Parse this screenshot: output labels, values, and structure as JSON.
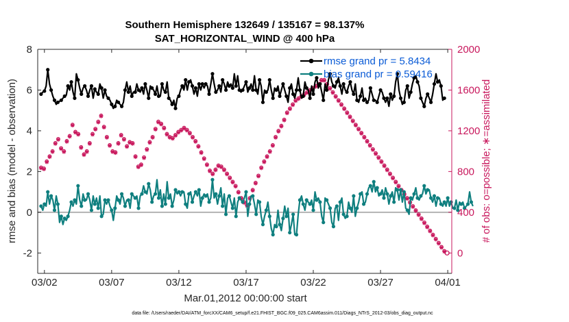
{
  "chart_data": {
    "type": "line",
    "title": "Southern Hemisphere 132649 / 135167 = 98.137%",
    "subtitle": "SAT_HORIZONTAL_WIND @ 400 hPa",
    "xlabel": "Mar.01,2012 00:00:00 start",
    "ylabel_left": "rmse and bias (model - observation)",
    "ylabel_right": "# of obs: o=possible; ∗=assimilated",
    "footnote": "data file: /Users/raeder/DAI/ATM_forcXX/CAM6_setup/f.e21.FHIST_BGC.f09_025.CAM6assim.011/Diags_NTrS_2012-03/obs_diag_output.nc",
    "x_tick_labels": [
      "03/02",
      "03/07",
      "03/12",
      "03/17",
      "03/22",
      "03/27",
      "04/01"
    ],
    "x_tick_days": [
      2,
      7,
      12,
      17,
      22,
      27,
      32
    ],
    "xlim_days": [
      1.5,
      32.3
    ],
    "y_left_ticks": [
      "8",
      "6",
      "4",
      "2",
      "0",
      "-2"
    ],
    "y_left_lim": [
      -3,
      8
    ],
    "y_right_ticks": [
      "2000",
      "1600",
      "1200",
      "800",
      "400",
      "0"
    ],
    "y_right_lim": [
      -200,
      2000
    ],
    "legend": {
      "location": "top-right",
      "entries": [
        "rmse grand pr = 5.8434",
        "bias grand pr = 0.59416"
      ]
    },
    "colors": {
      "rmse": "#000000",
      "bias": "#0f7f7f",
      "obs": "#c8175c",
      "zero_line": "#b3b3b3"
    },
    "series": [
      {
        "name": "rmse grand pr = 5.8434",
        "values": [
          5.8,
          5.9,
          5.95,
          6.2,
          7.0,
          6.3,
          6.0,
          5.7,
          5.5,
          5.3,
          5.4,
          5.45,
          5.5,
          5.6,
          5.7,
          5.75,
          6.2,
          6.0,
          6.4,
          5.9,
          5.6,
          6.8,
          6.5,
          6.1,
          5.8,
          6.1,
          6.2,
          6.0,
          5.7,
          6.0,
          6.2,
          5.6,
          6.05,
          5.9,
          5.8,
          6.3,
          6.1,
          5.6,
          6.0,
          5.7,
          5.6,
          5.5,
          5.3,
          5.1,
          5.2,
          5.5,
          5.4,
          5.3,
          5.2,
          5.4,
          6.0,
          6.4,
          5.9,
          6.2,
          5.7,
          5.9,
          5.9,
          6.3,
          6.0,
          5.9,
          6.1,
          5.8,
          6.3,
          6.0,
          5.6,
          6.2,
          6.1,
          6.0,
          5.8,
          6.2,
          5.7,
          5.7,
          6.3,
          6.0,
          5.9,
          6.4,
          5.6,
          5.5,
          5.3,
          5.5,
          5.1,
          5.6,
          5.7,
          6.0,
          6.2,
          6.0,
          6.5,
          6.0,
          6.4,
          6.5,
          6.2,
          5.8,
          6.1,
          5.7,
          6.3,
          6.0,
          6.3,
          6.1,
          6.3,
          6.2,
          5.8,
          6.3,
          6.8,
          6.3,
          5.9,
          6.0,
          6.2,
          5.9,
          6.5,
          6.3,
          6.0,
          6.4,
          6.2,
          6.3,
          6.1,
          6.8,
          6.2,
          6.7,
          6.0,
          5.9,
          6.0,
          6.2,
          6.4,
          5.9,
          6.1,
          6.3,
          6.0,
          6.7,
          6.0,
          5.8,
          6.5,
          6.2,
          5.4,
          6.0,
          5.9,
          6.0,
          6.5,
          6.0,
          5.6,
          6.1,
          6.0,
          6.2,
          5.7,
          6.0,
          6.3,
          6.0,
          5.7,
          5.4,
          6.1,
          6.3,
          5.8,
          5.6,
          6.0,
          6.6,
          6.0,
          5.6,
          5.7,
          6.4,
          6.1,
          6.0,
          5.6,
          6.2,
          5.8,
          6.4,
          6.6,
          6.1,
          6.3,
          5.9,
          5.5,
          6.3,
          6.0,
          6.5,
          6.8,
          6.4,
          6.2,
          6.1,
          6.4,
          6.6,
          6.2,
          5.8,
          6.3,
          6.0,
          5.9,
          6.2,
          6.4,
          6.0,
          5.8,
          6.3,
          5.5,
          5.4,
          5.7,
          6.1,
          5.5,
          5.6,
          5.4,
          5.5,
          6.1,
          5.8,
          5.5,
          5.5,
          5.4,
          5.7,
          6.0,
          5.9,
          5.6,
          5.4,
          5.6,
          5.2,
          5.8,
          5.5,
          5.7,
          6.4,
          6.8,
          6.0,
          5.6,
          5.3,
          5.4,
          6.0,
          6.2,
          5.6,
          5.9,
          6.3,
          6.6,
          6.7,
          6.4,
          6.2,
          5.6,
          5.4,
          5.2,
          5.6,
          5.8,
          5.6,
          5.4,
          5.8,
          6.3,
          6.8,
          6.4,
          6.5,
          6.2,
          5.5,
          5.6
        ]
      },
      {
        "name": "bias grand pr = 0.59416",
        "values": [
          0.3,
          0.1,
          0.4,
          0.3,
          1.0,
          0.4,
          0.8,
          0.6,
          0.1,
          0.8,
          0.4,
          -0.5,
          -0.2,
          -0.6,
          -0.3,
          -0.4,
          -0.2,
          0.1,
          0.5,
          0.3,
          0.6,
          0.4,
          1.3,
          0.6,
          0.3,
          0.9,
          0.6,
          0.6,
          0.9,
          0.6,
          0.1,
          0.8,
          0.4,
          0.7,
          0.2,
          0.8,
          -0.2,
          -0.1,
          0.6,
          0.4,
          0.6,
          0.3,
          0.1,
          -0.4,
          0.2,
          0.8,
          0.6,
          0.4,
          0.9,
          0.7,
          0.3,
          0.6,
          0.6,
          0.2,
          0.9,
          0.8,
          0.7,
          0.8,
          0.2,
          0.8,
          0.9,
          1.3,
          1.0,
          0.9,
          1.4,
          1.1,
          0.5,
          0.8,
          0.9,
          1.6,
          0.7,
          1.1,
          0.3,
          0.9,
          0.4,
          1.5,
          0.7,
          0.9,
          0.3,
          0.6,
          1.1,
          0.9,
          1.0,
          0.8,
          1.0,
          1.0,
          0.4,
          0.2,
          0.9,
          1.0,
          0.5,
          0.8,
          1.0,
          0.8,
          1.1,
          0.3,
          0.7,
          0.9,
          0.8,
          0.9,
          0.5,
          0.7,
          1.6,
          0.7,
          0.9,
          0.4,
          0.8,
          1.2,
          0.3,
          0.9,
          -0.1,
          0.7,
          0.8,
          0.5,
          0.2,
          0.7,
          -0.2,
          0.5,
          0.7,
          0.6,
          0.5,
          0.7,
          1.0,
          -0.2,
          0.4,
          0.8,
          0.8,
          0.4,
          -0.1,
          0.6,
          0.5,
          -0.2,
          -0.6,
          -0.2,
          0.1,
          0.5,
          -0.2,
          -0.8,
          -1.1,
          -0.6,
          -0.7,
          0.1,
          -0.6,
          -0.9,
          -0.3,
          0.3,
          -0.2,
          0.2,
          -1.0,
          -0.6,
          -0.1,
          -1.1,
          -1.1,
          -0.1,
          0.6,
          0.8,
          0.4,
          0.1,
          0.6,
          0.5,
          0.4,
          0.6,
          0.1,
          1.0,
          0.6,
          0.7,
          0.5,
          -0.2,
          -0.5,
          0.7,
          0.6,
          0.4,
          0.2,
          -0.5,
          -0.7,
          0.2,
          0.3,
          -0.4,
          0.5,
          0.7,
          -0.1,
          -0.3,
          -0.2,
          0.5,
          0.2,
          0.0,
          0.8,
          -0.2,
          0.2,
          0.5,
          0.9,
          1.0,
          0.4,
          0.5,
          0.9,
          1.2,
          1.3,
          1.0,
          1.5,
          1.0,
          1.2,
          0.8,
          0.9,
          1.1,
          0.7,
          1.2,
          0.9,
          0.4,
          0.8,
          1.0,
          0.5,
          1.2,
          1.1,
          0.6,
          1.1,
          0.5,
          1.0,
          0.2,
          0.1,
          -0.1,
          0.7,
          0.6,
          0.9,
          1.2,
          0.7,
          0.6,
          0.8,
          0.9,
          1.3,
          0.9,
          1.1,
          1.1,
          0.7,
          0.5,
          0.8,
          0.3,
          0.7,
          0.7,
          0.4,
          0.3,
          0.5,
          0.3,
          0.7,
          0.3,
          0.5,
          0.2,
          0.2,
          0.6,
          0.1,
          0.5,
          0.4,
          0.5,
          0.2,
          0.3,
          0.4,
          1.0,
          0.5,
          0.3
        ]
      }
    ],
    "obs_possible": [
      840,
      850,
      830,
      870,
      900,
      920,
      950,
      960,
      1000,
      1060,
      1080,
      1100,
      1120,
      1050,
      1030,
      990,
      1000,
      1080,
      1100,
      1120,
      1150,
      1180,
      1260,
      1250,
      1190,
      1210,
      1170,
      1100,
      1040,
      990,
      970,
      960,
      1000,
      1020,
      1080,
      1120,
      1170,
      1190,
      1220,
      1260,
      1290,
      1320,
      1350,
      1310,
      1240,
      1190,
      1140,
      1100,
      1060,
      1020,
      1000,
      970,
      990,
      1040,
      1080,
      1130,
      1160,
      1150,
      1120,
      1080,
      1050,
      1070,
      1090,
      1110,
      1080,
      1000,
      950,
      880,
      850,
      860,
      870,
      900,
      940,
      980,
      1020,
      1060,
      1090,
      1120,
      1140,
      1180,
      1220,
      1260,
      1290,
      1280,
      1270,
      1250,
      1230,
      1200,
      1170,
      1150,
      1140,
      1130,
      1130,
      1150,
      1160,
      1170,
      1190,
      1200,
      1210,
      1220,
      1230,
      1220,
      1210,
      1200,
      1180,
      1160,
      1140,
      1120,
      1100,
      1080,
      1050,
      1020,
      990,
      960,
      930,
      900,
      870,
      840,
      810,
      790,
      780,
      800,
      820,
      840,
      860,
      870,
      850,
      830,
      820,
      810,
      780,
      760,
      740,
      720,
      700,
      680,
      660,
      640,
      600,
      570,
      540,
      520,
      500,
      480,
      470,
      500,
      540,
      580,
      620,
      660,
      690,
      720,
      760,
      800,
      840,
      880,
      900,
      920,
      950,
      980,
      1000,
      1030,
      1060,
      1100,
      1140,
      1180,
      1200,
      1220,
      1250,
      1280,
      1310,
      1350,
      1380,
      1400,
      1420,
      1440,
      1460,
      1480,
      1500,
      1510,
      1520,
      1530,
      1540,
      1550,
      1560,
      1570,
      1580,
      1590,
      1600,
      1610,
      1620,
      1630,
      1640,
      1650,
      1660,
      1680,
      1700,
      1710,
      1700,
      1680,
      1660,
      1640,
      1620,
      1600,
      1580,
      1560,
      1540,
      1520,
      1500,
      1480,
      1460,
      1440,
      1420,
      1400,
      1380,
      1360,
      1340,
      1320,
      1300,
      1280,
      1260,
      1240,
      1220,
      1200,
      1180,
      1160,
      1140,
      1120,
      1100,
      1080,
      1060,
      1040,
      1020,
      1000,
      980,
      960,
      940,
      920,
      900,
      880,
      860,
      840,
      820,
      800,
      780,
      760,
      740,
      720,
      700,
      680,
      660,
      640,
      620,
      600,
      580,
      560,
      540,
      520,
      500,
      480,
      460,
      440,
      420,
      400,
      380,
      360,
      340,
      320,
      300,
      280,
      260,
      240,
      220,
      200,
      180,
      160,
      140,
      120,
      100,
      80,
      60,
      40,
      20
    ],
    "obs_end_value": 0
  }
}
